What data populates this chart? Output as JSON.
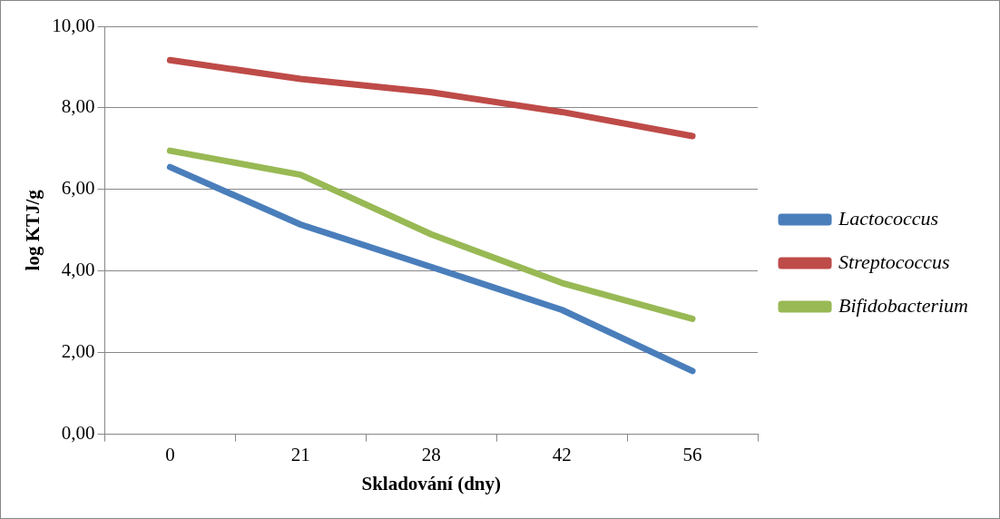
{
  "chart_data": {
    "type": "line",
    "xlabel": "Skladování (dny)",
    "ylabel": "log KTJ/g",
    "categories": [
      "0",
      "21",
      "28",
      "42",
      "56"
    ],
    "series": [
      {
        "name": "Lactococcus",
        "color": "#4a7ebb",
        "values": [
          6.55,
          5.14,
          4.1,
          3.05,
          1.55
        ]
      },
      {
        "name": "Streptococcus",
        "color": "#be4b48",
        "values": [
          9.17,
          8.71,
          8.38,
          7.9,
          7.31
        ]
      },
      {
        "name": "Bifidobacterium",
        "color": "#98b954",
        "values": [
          6.95,
          6.36,
          4.9,
          3.71,
          2.83
        ]
      }
    ],
    "ylim": [
      0,
      10
    ],
    "yticks": [
      {
        "value": 0,
        "label": "0,00"
      },
      {
        "value": 2,
        "label": "2,00"
      },
      {
        "value": 4,
        "label": "4,00"
      },
      {
        "value": 6,
        "label": "6,00"
      },
      {
        "value": 8,
        "label": "8,00"
      },
      {
        "value": 10,
        "label": "10,00"
      }
    ],
    "grid": "y",
    "legend": "right",
    "marker": "none",
    "line_style": "solid"
  }
}
